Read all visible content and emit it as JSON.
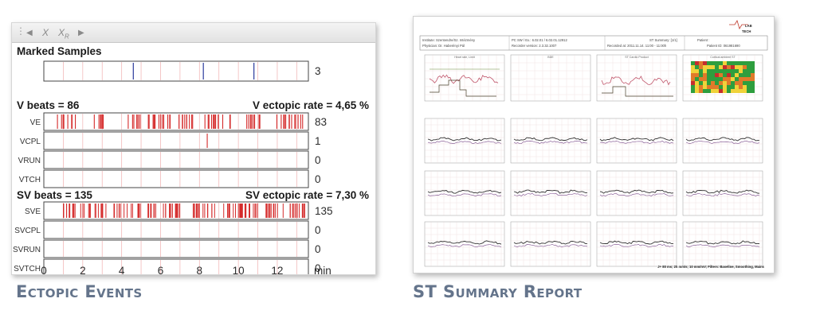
{
  "ectopic_panel": {
    "toolbar": {
      "grip": "⋮",
      "prev": "◀",
      "x": "X",
      "xr_base": "X",
      "xr_sub": "R",
      "next": "▶"
    },
    "marked_samples": {
      "title": "Marked Samples",
      "count": "3",
      "marks": [
        4.6,
        8.2,
        10.8
      ]
    },
    "v_section": {
      "beats": "V beats = 86",
      "rate": "V ectopic rate = 4,65 %"
    },
    "v_rows": [
      {
        "label": "VE",
        "count": "83"
      },
      {
        "label": "VCPL",
        "count": "1"
      },
      {
        "label": "VRUN",
        "count": "0"
      },
      {
        "label": "VTCH",
        "count": "0"
      }
    ],
    "sv_section": {
      "beats": "SV beats = 135",
      "rate": "SV ectopic rate = 7,30 %"
    },
    "sv_rows": [
      {
        "label": "SVE",
        "count": "135"
      },
      {
        "label": "SVCPL",
        "count": "0"
      },
      {
        "label": "SVRUN",
        "count": "0"
      },
      {
        "label": "SVTCH",
        "count": "0"
      }
    ],
    "x_ticks": [
      "0",
      "2",
      "4",
      "6",
      "8",
      "10",
      "12"
    ],
    "x_unit": "min",
    "colors": {
      "event": "#d42a2a",
      "marker": "#2a3a9c",
      "grid": "#f2b9b9",
      "frame": "#444444"
    }
  },
  "st_report": {
    "logo": {
      "line1": "LAB",
      "line2": "TECH"
    },
    "header": {
      "institute": "Institute: Szentendre/Sz. Intézmény",
      "physician": "Physician: Dr. Haberényi Pál",
      "pc_sw": "PC SW / Ex.: 6.02.01 / 6.02.01.12912",
      "recorder": "Recorder version: 2.3.32.1007",
      "summary": "ST Summary: [1/1]",
      "recorded": "Recorded at: 2011.11.14. 11:00 - 11:00h",
      "patient": "Patient :",
      "patient_id": "Patient ID: 061981690"
    },
    "top_charts": [
      "Heart rate, Limit",
      "BDE",
      "ST Cardio Product",
      "Cortical ambient ST"
    ],
    "footer": "J+ 80 ms; 25 mm/s; 10 mm/mV; Filters: Baseline, Smoothing, Mains"
  },
  "captions": {
    "left": "Ectopic Events",
    "right": "ST Summary Report"
  }
}
